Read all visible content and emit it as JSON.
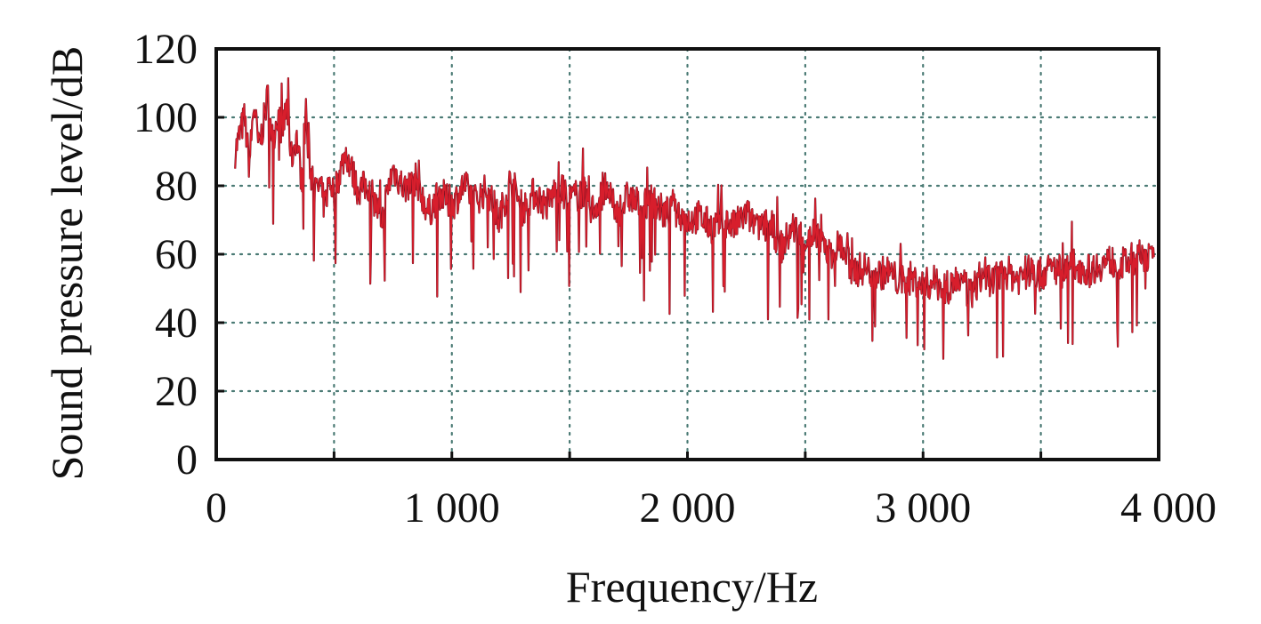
{
  "chart_data": {
    "type": "line",
    "title": "",
    "xlabel": "Frequency/Hz",
    "ylabel": "Sound pressure level/dB",
    "xlim": [
      0,
      4000
    ],
    "ylim": [
      0,
      120
    ],
    "x_ticks": [
      0,
      500,
      1000,
      1500,
      2000,
      2500,
      3000,
      3500,
      4000
    ],
    "x_tick_labels": [
      "0",
      "",
      "1 000",
      "",
      "2 000",
      "",
      "3 000",
      "",
      "4 000"
    ],
    "y_ticks": [
      0,
      20,
      40,
      60,
      80,
      100,
      120
    ],
    "y_tick_labels": [
      "0",
      "20",
      "40",
      "60",
      "80",
      "100",
      "120"
    ],
    "grid": true,
    "series_color": "#e3202e",
    "series_dark_color": "#6b0f1f",
    "series": [
      {
        "x": [
          80,
          100,
          120,
          140,
          160,
          180,
          200,
          220,
          240,
          260,
          280,
          300,
          320,
          340,
          360,
          380,
          400,
          420,
          440,
          460,
          480,
          500,
          550,
          600,
          650,
          700,
          750,
          800,
          850,
          900,
          950,
          1000,
          1050,
          1100,
          1150,
          1200,
          1250,
          1300,
          1350,
          1400,
          1450,
          1500,
          1550,
          1600,
          1650,
          1700,
          1750,
          1800,
          1850,
          1900,
          1950,
          2000,
          2050,
          2100,
          2150,
          2200,
          2250,
          2300,
          2350,
          2400,
          2450,
          2500,
          2550,
          2600,
          2650,
          2700,
          2750,
          2800,
          2850,
          2900,
          2950,
          3000,
          3050,
          3100,
          3150,
          3200,
          3250,
          3300,
          3350,
          3400,
          3450,
          3500,
          3550,
          3600,
          3650,
          3700,
          3750,
          3800,
          3850,
          3900,
          3950,
          3980
        ],
        "values": [
          90,
          95,
          100,
          86,
          104,
          91,
          98,
          107,
          93,
          101,
          96,
          103,
          88,
          95,
          83,
          100,
          84,
          78,
          80,
          74,
          82,
          78,
          90,
          79,
          80,
          70,
          85,
          79,
          82,
          72,
          78,
          74,
          80,
          76,
          79,
          70,
          82,
          73,
          78,
          74,
          80,
          76,
          78,
          73,
          79,
          72,
          77,
          74,
          76,
          72,
          73,
          70,
          71,
          68,
          70,
          68,
          72,
          67,
          69,
          62,
          68,
          64,
          67,
          60,
          63,
          55,
          56,
          54,
          55,
          52,
          53,
          51,
          52,
          50,
          53,
          48,
          54,
          52,
          55,
          53,
          55,
          54,
          56,
          55,
          57,
          55,
          57,
          58,
          57,
          59,
          60,
          57
        ]
      }
    ]
  }
}
